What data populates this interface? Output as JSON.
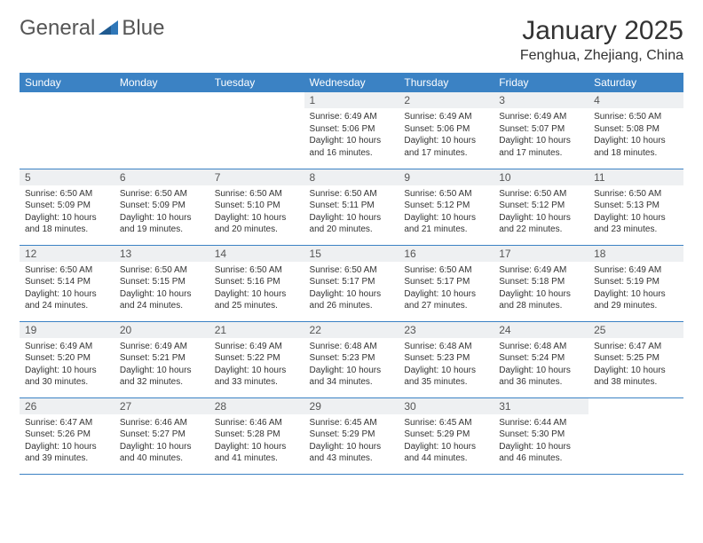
{
  "brand": {
    "part1": "General",
    "part2": "Blue"
  },
  "colors": {
    "header_bg": "#3b82c4",
    "header_text": "#ffffff",
    "daynum_bg": "#eef0f2",
    "border": "#3b82c4",
    "brand_blue": "#2f77b8",
    "text": "#333333"
  },
  "title": "January 2025",
  "location": "Fenghua, Zhejiang, China",
  "weekdays": [
    "Sunday",
    "Monday",
    "Tuesday",
    "Wednesday",
    "Thursday",
    "Friday",
    "Saturday"
  ],
  "weeks": [
    [
      null,
      null,
      null,
      {
        "n": "1",
        "sr": "Sunrise: 6:49 AM",
        "ss": "Sunset: 5:06 PM",
        "dl": "Daylight: 10 hours and 16 minutes."
      },
      {
        "n": "2",
        "sr": "Sunrise: 6:49 AM",
        "ss": "Sunset: 5:06 PM",
        "dl": "Daylight: 10 hours and 17 minutes."
      },
      {
        "n": "3",
        "sr": "Sunrise: 6:49 AM",
        "ss": "Sunset: 5:07 PM",
        "dl": "Daylight: 10 hours and 17 minutes."
      },
      {
        "n": "4",
        "sr": "Sunrise: 6:50 AM",
        "ss": "Sunset: 5:08 PM",
        "dl": "Daylight: 10 hours and 18 minutes."
      }
    ],
    [
      {
        "n": "5",
        "sr": "Sunrise: 6:50 AM",
        "ss": "Sunset: 5:09 PM",
        "dl": "Daylight: 10 hours and 18 minutes."
      },
      {
        "n": "6",
        "sr": "Sunrise: 6:50 AM",
        "ss": "Sunset: 5:09 PM",
        "dl": "Daylight: 10 hours and 19 minutes."
      },
      {
        "n": "7",
        "sr": "Sunrise: 6:50 AM",
        "ss": "Sunset: 5:10 PM",
        "dl": "Daylight: 10 hours and 20 minutes."
      },
      {
        "n": "8",
        "sr": "Sunrise: 6:50 AM",
        "ss": "Sunset: 5:11 PM",
        "dl": "Daylight: 10 hours and 20 minutes."
      },
      {
        "n": "9",
        "sr": "Sunrise: 6:50 AM",
        "ss": "Sunset: 5:12 PM",
        "dl": "Daylight: 10 hours and 21 minutes."
      },
      {
        "n": "10",
        "sr": "Sunrise: 6:50 AM",
        "ss": "Sunset: 5:12 PM",
        "dl": "Daylight: 10 hours and 22 minutes."
      },
      {
        "n": "11",
        "sr": "Sunrise: 6:50 AM",
        "ss": "Sunset: 5:13 PM",
        "dl": "Daylight: 10 hours and 23 minutes."
      }
    ],
    [
      {
        "n": "12",
        "sr": "Sunrise: 6:50 AM",
        "ss": "Sunset: 5:14 PM",
        "dl": "Daylight: 10 hours and 24 minutes."
      },
      {
        "n": "13",
        "sr": "Sunrise: 6:50 AM",
        "ss": "Sunset: 5:15 PM",
        "dl": "Daylight: 10 hours and 24 minutes."
      },
      {
        "n": "14",
        "sr": "Sunrise: 6:50 AM",
        "ss": "Sunset: 5:16 PM",
        "dl": "Daylight: 10 hours and 25 minutes."
      },
      {
        "n": "15",
        "sr": "Sunrise: 6:50 AM",
        "ss": "Sunset: 5:17 PM",
        "dl": "Daylight: 10 hours and 26 minutes."
      },
      {
        "n": "16",
        "sr": "Sunrise: 6:50 AM",
        "ss": "Sunset: 5:17 PM",
        "dl": "Daylight: 10 hours and 27 minutes."
      },
      {
        "n": "17",
        "sr": "Sunrise: 6:49 AM",
        "ss": "Sunset: 5:18 PM",
        "dl": "Daylight: 10 hours and 28 minutes."
      },
      {
        "n": "18",
        "sr": "Sunrise: 6:49 AM",
        "ss": "Sunset: 5:19 PM",
        "dl": "Daylight: 10 hours and 29 minutes."
      }
    ],
    [
      {
        "n": "19",
        "sr": "Sunrise: 6:49 AM",
        "ss": "Sunset: 5:20 PM",
        "dl": "Daylight: 10 hours and 30 minutes."
      },
      {
        "n": "20",
        "sr": "Sunrise: 6:49 AM",
        "ss": "Sunset: 5:21 PM",
        "dl": "Daylight: 10 hours and 32 minutes."
      },
      {
        "n": "21",
        "sr": "Sunrise: 6:49 AM",
        "ss": "Sunset: 5:22 PM",
        "dl": "Daylight: 10 hours and 33 minutes."
      },
      {
        "n": "22",
        "sr": "Sunrise: 6:48 AM",
        "ss": "Sunset: 5:23 PM",
        "dl": "Daylight: 10 hours and 34 minutes."
      },
      {
        "n": "23",
        "sr": "Sunrise: 6:48 AM",
        "ss": "Sunset: 5:23 PM",
        "dl": "Daylight: 10 hours and 35 minutes."
      },
      {
        "n": "24",
        "sr": "Sunrise: 6:48 AM",
        "ss": "Sunset: 5:24 PM",
        "dl": "Daylight: 10 hours and 36 minutes."
      },
      {
        "n": "25",
        "sr": "Sunrise: 6:47 AM",
        "ss": "Sunset: 5:25 PM",
        "dl": "Daylight: 10 hours and 38 minutes."
      }
    ],
    [
      {
        "n": "26",
        "sr": "Sunrise: 6:47 AM",
        "ss": "Sunset: 5:26 PM",
        "dl": "Daylight: 10 hours and 39 minutes."
      },
      {
        "n": "27",
        "sr": "Sunrise: 6:46 AM",
        "ss": "Sunset: 5:27 PM",
        "dl": "Daylight: 10 hours and 40 minutes."
      },
      {
        "n": "28",
        "sr": "Sunrise: 6:46 AM",
        "ss": "Sunset: 5:28 PM",
        "dl": "Daylight: 10 hours and 41 minutes."
      },
      {
        "n": "29",
        "sr": "Sunrise: 6:45 AM",
        "ss": "Sunset: 5:29 PM",
        "dl": "Daylight: 10 hours and 43 minutes."
      },
      {
        "n": "30",
        "sr": "Sunrise: 6:45 AM",
        "ss": "Sunset: 5:29 PM",
        "dl": "Daylight: 10 hours and 44 minutes."
      },
      {
        "n": "31",
        "sr": "Sunrise: 6:44 AM",
        "ss": "Sunset: 5:30 PM",
        "dl": "Daylight: 10 hours and 46 minutes."
      },
      null
    ]
  ]
}
